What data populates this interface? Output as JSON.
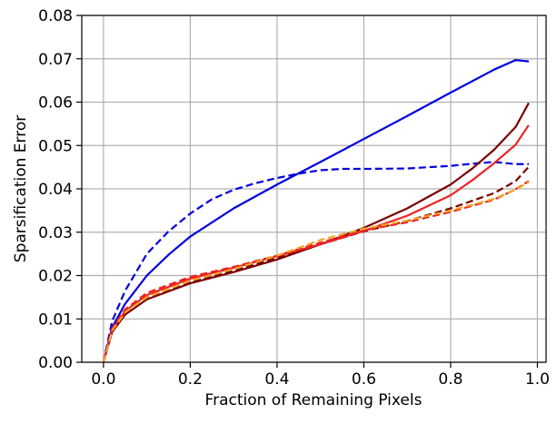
{
  "chart_data": {
    "type": "line",
    "title": "",
    "xlabel": "Fraction of Remaining Pixels",
    "ylabel": "Sparsification Error",
    "xlim": [
      -0.05,
      1.02
    ],
    "ylim": [
      0.0,
      0.08
    ],
    "grid": true,
    "legend": "none",
    "x_ticks": [
      0.0,
      0.2,
      0.4,
      0.6,
      0.8,
      1.0
    ],
    "x_tick_labels": [
      "0.0",
      "0.2",
      "0.4",
      "0.6",
      "0.8",
      "1.0"
    ],
    "y_ticks": [
      0.0,
      0.01,
      0.02,
      0.03,
      0.04,
      0.05,
      0.06,
      0.07,
      0.08
    ],
    "y_tick_labels": [
      "0.00",
      "0.01",
      "0.02",
      "0.03",
      "0.04",
      "0.05",
      "0.06",
      "0.07",
      "0.08"
    ],
    "series": [
      {
        "color": "#0000dd",
        "dash": "solid",
        "x": [
          0.0,
          0.02,
          0.05,
          0.1,
          0.15,
          0.2,
          0.3,
          0.4,
          0.5,
          0.6,
          0.7,
          0.8,
          0.9,
          0.95,
          0.98
        ],
        "y": [
          0.0,
          0.008,
          0.0135,
          0.02,
          0.0248,
          0.029,
          0.0355,
          0.041,
          0.0462,
          0.0515,
          0.0568,
          0.0622,
          0.0675,
          0.0697,
          0.0694
        ]
      },
      {
        "color": "#0000dd",
        "dash": "dashed",
        "x": [
          0.0,
          0.02,
          0.05,
          0.1,
          0.15,
          0.2,
          0.25,
          0.3,
          0.35,
          0.4,
          0.45,
          0.5,
          0.55,
          0.6,
          0.7,
          0.8,
          0.85,
          0.9,
          0.95,
          0.98
        ],
        "y": [
          0.0,
          0.0095,
          0.0165,
          0.025,
          0.0302,
          0.0343,
          0.0376,
          0.0398,
          0.0413,
          0.0425,
          0.0435,
          0.0443,
          0.0446,
          0.0446,
          0.0447,
          0.0453,
          0.0458,
          0.0462,
          0.0457,
          0.0457
        ]
      },
      {
        "color": "#7a0000",
        "dash": "solid",
        "x": [
          0.0,
          0.02,
          0.05,
          0.1,
          0.2,
          0.3,
          0.4,
          0.5,
          0.6,
          0.7,
          0.8,
          0.85,
          0.9,
          0.95,
          0.98
        ],
        "y": [
          0.0,
          0.007,
          0.011,
          0.0145,
          0.0182,
          0.0208,
          0.0237,
          0.0272,
          0.031,
          0.0355,
          0.041,
          0.0447,
          0.049,
          0.0543,
          0.0598
        ]
      },
      {
        "color": "#7a0000",
        "dash": "dashed",
        "x": [
          0.0,
          0.02,
          0.05,
          0.1,
          0.2,
          0.3,
          0.4,
          0.5,
          0.6,
          0.7,
          0.8,
          0.9,
          0.95,
          0.98
        ],
        "y": [
          0.0,
          0.0072,
          0.0113,
          0.0149,
          0.0186,
          0.0212,
          0.0241,
          0.0272,
          0.0302,
          0.0326,
          0.0355,
          0.039,
          0.0418,
          0.0451
        ]
      },
      {
        "color": "#ee2222",
        "dash": "solid",
        "x": [
          0.0,
          0.02,
          0.05,
          0.1,
          0.2,
          0.3,
          0.4,
          0.5,
          0.6,
          0.7,
          0.8,
          0.85,
          0.9,
          0.95,
          0.98
        ],
        "y": [
          0.0,
          0.0075,
          0.0118,
          0.0155,
          0.0193,
          0.0218,
          0.0245,
          0.0272,
          0.0303,
          0.0338,
          0.0385,
          0.042,
          0.0459,
          0.0502,
          0.0547
        ]
      },
      {
        "color": "#ee2222",
        "dash": "dashed",
        "x": [
          0.0,
          0.02,
          0.05,
          0.1,
          0.2,
          0.3,
          0.4,
          0.5,
          0.6,
          0.7,
          0.8,
          0.9,
          0.95,
          0.98
        ],
        "y": [
          0.0,
          0.0078,
          0.0122,
          0.016,
          0.0197,
          0.022,
          0.0246,
          0.0276,
          0.0304,
          0.0323,
          0.0347,
          0.0375,
          0.0399,
          0.0418
        ]
      },
      {
        "color": "#f5a623",
        "dash": "dashed",
        "x": [
          0.0,
          0.02,
          0.05,
          0.1,
          0.2,
          0.3,
          0.4,
          0.5,
          0.6,
          0.7,
          0.8,
          0.9,
          0.95,
          0.98
        ],
        "y": [
          0.0,
          0.0073,
          0.0115,
          0.015,
          0.0188,
          0.0215,
          0.0246,
          0.0282,
          0.0308,
          0.0327,
          0.035,
          0.0377,
          0.0398,
          0.0416
        ]
      }
    ]
  }
}
